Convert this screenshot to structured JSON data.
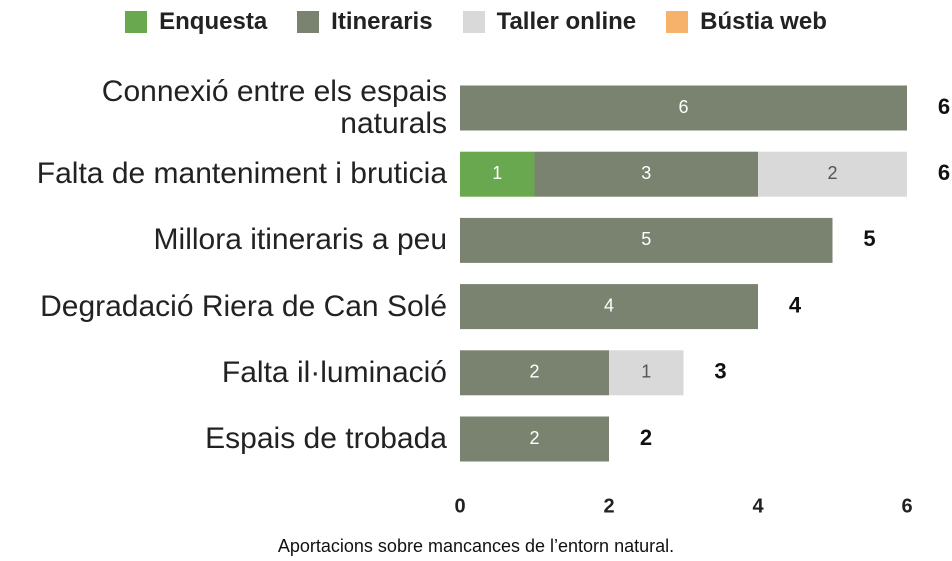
{
  "chart_data": {
    "type": "stacked-bar-horizontal",
    "caption": "Aportacions sobre mancances de l’entorn natural.",
    "categories": [
      "Connexió entre els espais naturals",
      "Falta de manteniment i bruticia",
      "Millora itineraris a peu",
      "Degradació Riera de Can Solé",
      "Falta il·luminació",
      "Espais de trobada"
    ],
    "series": [
      {
        "name": "Enquesta",
        "color": "#6aa84f",
        "values": [
          0,
          1,
          0,
          0,
          0,
          0
        ]
      },
      {
        "name": "Itineraris",
        "color": "#7a8370",
        "values": [
          6,
          3,
          5,
          4,
          2,
          2
        ]
      },
      {
        "name": "Taller online",
        "color": "#d9d9d9",
        "values": [
          0,
          2,
          0,
          0,
          1,
          0
        ]
      },
      {
        "name": "Bústia web",
        "color": "#f6b26b",
        "values": [
          0,
          0,
          0,
          0,
          0,
          0
        ]
      }
    ],
    "totals": [
      6,
      6,
      5,
      4,
      3,
      2
    ],
    "xlim": [
      0,
      6
    ],
    "xticks": [
      0,
      2,
      4,
      6
    ],
    "legend": "top"
  }
}
